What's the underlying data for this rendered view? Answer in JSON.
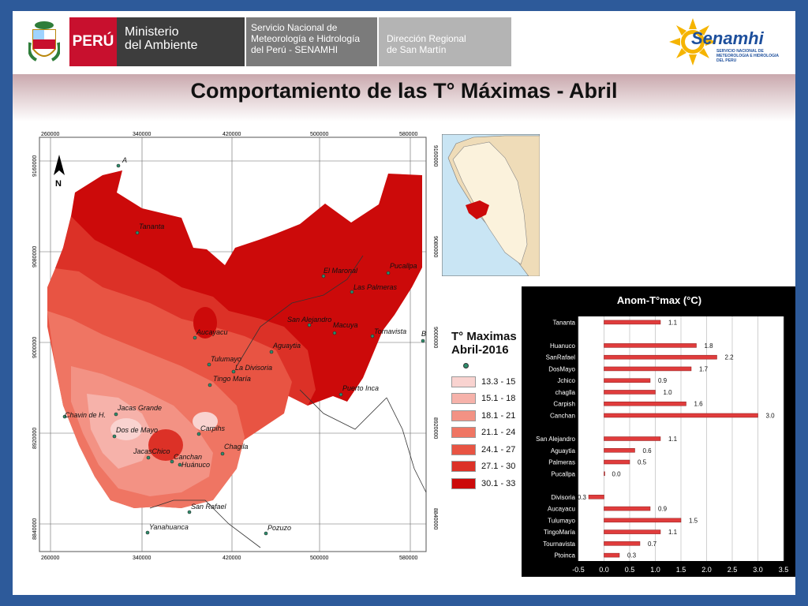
{
  "header": {
    "peru_label": "PERÚ",
    "ministry_line1": "Ministerio",
    "ministry_line2": "del Ambiente",
    "service_line1": "Servicio Nacional de",
    "service_line2": "Meteorología e Hidrología",
    "service_line3": "del Perú - SENAMHI",
    "direction_line1": "Dirección Regional",
    "direction_line2": "de San Martín",
    "senamhi_name": "Senamhi",
    "senamhi_sub": "SERVICIO NACIONAL DE METEOROLOGIA E HIDROLOGIA DEL PERU"
  },
  "title": "Comportamiento de las T° Máximas - Abril",
  "map": {
    "top_ticks": [
      "260000",
      "340000",
      "420000",
      "500000",
      "580000"
    ],
    "bottom_ticks": [
      "260000",
      "340000",
      "420000",
      "500000",
      "580000"
    ],
    "left_ticks": [
      "9160000",
      "9080000",
      "9000000",
      "8920000",
      "8840000"
    ],
    "right_ticks": [
      "9160000",
      "9080000",
      "9000000",
      "8920000",
      "8840000"
    ],
    "north_label": "N",
    "corner_labels": [
      "A",
      "B"
    ],
    "places": [
      "Tananta",
      "El Maronal",
      "Pucallpa",
      "Las Palmeras",
      "San Alejandro",
      "Macuya",
      "Tornavista",
      "Aucayacu",
      "Aguaytia",
      "Tulumayo",
      "La Divisoria",
      "Tingo María",
      "Puerto Inca",
      "Jacas Grande",
      "Chavin de H.",
      "Dos de Mayo",
      "Carpihs",
      "Chagila",
      "JacasChico",
      "Canchan",
      "Huánuco",
      "San Rafael",
      "Yanahuanca",
      "Pozuzo"
    ]
  },
  "legend": {
    "title_line1": "T° Maximas",
    "title_line2": "Abril-2016",
    "classes": [
      {
        "label": "13.3 - 15",
        "color": "#f9d3d0"
      },
      {
        "label": "15.1 - 18",
        "color": "#f6b2aa"
      },
      {
        "label": "18.1 - 21",
        "color": "#f39284"
      },
      {
        "label": "21.1 - 24",
        "color": "#ef7563"
      },
      {
        "label": "24.1 - 27",
        "color": "#e85443"
      },
      {
        "label": "27.1 - 30",
        "color": "#dc3127"
      },
      {
        "label": "30.1 - 33",
        "color": "#cc0a0a"
      }
    ]
  },
  "chart_data": {
    "type": "bar",
    "orientation": "horizontal",
    "title": "Anom-T°max (°C)",
    "categories": [
      "Tananta",
      "",
      "Huanuco",
      "SanRafael",
      "DosMayo",
      "Jchico",
      "chaglla",
      "Carpish",
      "Canchan",
      "",
      "San Alejandro",
      "Aguaytia",
      "Palmeras",
      "Pucallpa",
      "",
      "Divisoria",
      "Aucayacu",
      "Tulumayo",
      "TingoMaría",
      "Tournavista",
      "Ptoinca"
    ],
    "values": [
      1.1,
      null,
      1.8,
      2.2,
      1.7,
      0.9,
      1.0,
      1.6,
      3.0,
      null,
      1.1,
      0.6,
      0.5,
      0.0,
      null,
      -0.3,
      0.9,
      1.5,
      1.1,
      0.7,
      0.3
    ],
    "data_labels": [
      "1.1",
      "",
      "1.8",
      "2.2",
      "1.7",
      "0.9",
      "1.0",
      "1.6",
      "3.0",
      "",
      "1.1",
      "0.6",
      "0.5",
      "0.0",
      "",
      "-0.3",
      "0.9",
      "1.5",
      "1.1",
      "0.7",
      "0.3"
    ],
    "xlim": [
      -0.5,
      3.5
    ],
    "xticks": [
      "-0.5",
      "0.0",
      "0.5",
      "1.0",
      "1.5",
      "2.0",
      "2.5",
      "3.0",
      "3.5"
    ],
    "grid": true,
    "bar_color": "#e03c3c"
  }
}
